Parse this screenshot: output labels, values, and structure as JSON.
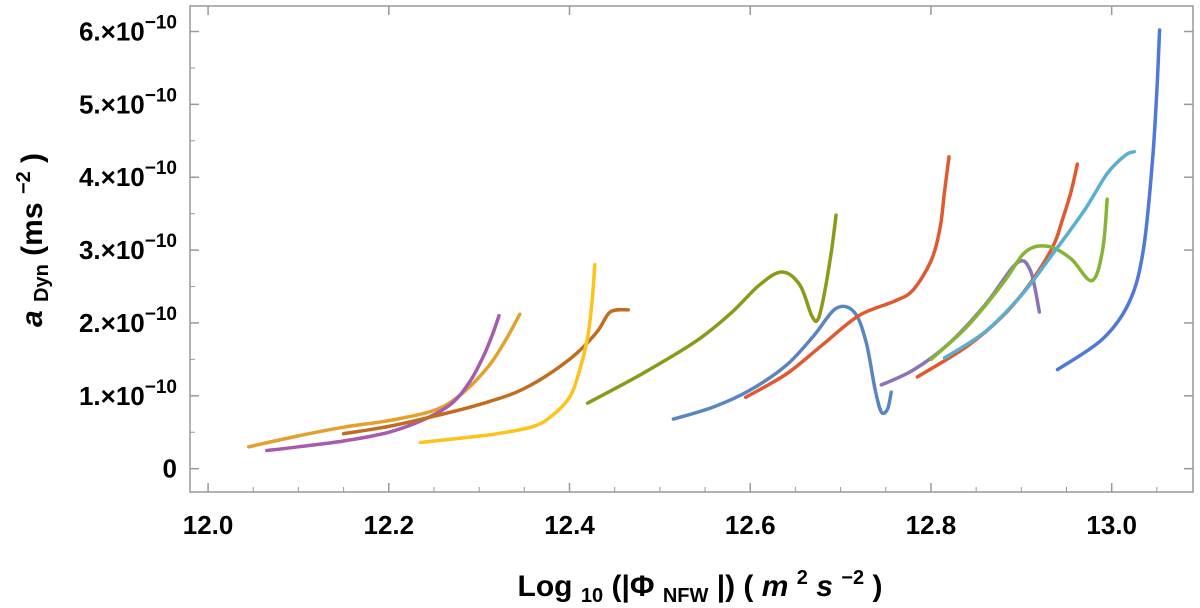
{
  "chart_data": {
    "type": "line",
    "title": "",
    "xlabel": {
      "prefix": "Log",
      "sub": "10",
      "open": "(|Φ",
      "sub2": "NFW",
      "close": "|) (",
      "unit_m": "m",
      "sup_m": "2",
      "unit_s": "s",
      "sup_s": "−2",
      "end": ")"
    },
    "ylabel": {
      "base": "a",
      "sub": "Dyn",
      "open": "(ms",
      "sup": "−2",
      "close": ")"
    },
    "xlim": [
      11.98,
      13.09
    ],
    "ylim": [
      -0.32,
      6.35
    ],
    "y_scale_exponent": -10,
    "x_ticks": [
      12.0,
      12.2,
      12.4,
      12.6,
      12.8,
      13.0
    ],
    "x_tick_labels": [
      "12.0",
      "12.2",
      "12.4",
      "12.6",
      "12.8",
      "13.0"
    ],
    "y_ticks": [
      0,
      1,
      2,
      3,
      4,
      5,
      6
    ],
    "y_tick_labels": [
      {
        "mantissa": "0",
        "exp": ""
      },
      {
        "mantissa": "1.×10",
        "exp": "−10"
      },
      {
        "mantissa": "2.×10",
        "exp": "−10"
      },
      {
        "mantissa": "3.×10",
        "exp": "−10"
      },
      {
        "mantissa": "4.×10",
        "exp": "−10"
      },
      {
        "mantissa": "5.×10",
        "exp": "−10"
      },
      {
        "mantissa": "6.×10",
        "exp": "−10"
      }
    ],
    "grid": false,
    "legend": "none",
    "series": [
      {
        "color": "#E3A02F",
        "points": [
          [
            12.045,
            0.3
          ],
          [
            12.1,
            0.45
          ],
          [
            12.15,
            0.57
          ],
          [
            12.2,
            0.66
          ],
          [
            12.25,
            0.8
          ],
          [
            12.28,
            1.02
          ],
          [
            12.31,
            1.4
          ],
          [
            12.33,
            1.78
          ],
          [
            12.345,
            2.12
          ]
        ]
      },
      {
        "color": "#A65BAE",
        "points": [
          [
            12.065,
            0.25
          ],
          [
            12.1,
            0.3
          ],
          [
            12.15,
            0.38
          ],
          [
            12.2,
            0.5
          ],
          [
            12.24,
            0.68
          ],
          [
            12.27,
            0.9
          ],
          [
            12.29,
            1.2
          ],
          [
            12.305,
            1.55
          ],
          [
            12.315,
            1.85
          ],
          [
            12.322,
            2.1
          ]
        ]
      },
      {
        "color": "#BF6E1F",
        "points": [
          [
            12.15,
            0.48
          ],
          [
            12.2,
            0.58
          ],
          [
            12.25,
            0.72
          ],
          [
            12.3,
            0.88
          ],
          [
            12.35,
            1.1
          ],
          [
            12.4,
            1.5
          ],
          [
            12.43,
            1.87
          ],
          [
            12.445,
            2.15
          ],
          [
            12.465,
            2.18
          ]
        ]
      },
      {
        "color": "#FFC21A",
        "points": [
          [
            12.235,
            0.36
          ],
          [
            12.28,
            0.42
          ],
          [
            12.32,
            0.48
          ],
          [
            12.36,
            0.58
          ],
          [
            12.38,
            0.72
          ],
          [
            12.4,
            0.98
          ],
          [
            12.41,
            1.3
          ],
          [
            12.42,
            1.8
          ],
          [
            12.425,
            2.3
          ],
          [
            12.428,
            2.8
          ]
        ]
      },
      {
        "color": "#8C9A1A",
        "points": [
          [
            12.42,
            0.9
          ],
          [
            12.48,
            1.3
          ],
          [
            12.54,
            1.75
          ],
          [
            12.58,
            2.15
          ],
          [
            12.61,
            2.52
          ],
          [
            12.635,
            2.7
          ],
          [
            12.655,
            2.52
          ],
          [
            12.668,
            2.1
          ],
          [
            12.675,
            2.05
          ],
          [
            12.682,
            2.4
          ],
          [
            12.69,
            3.0
          ],
          [
            12.695,
            3.48
          ]
        ]
      },
      {
        "color": "#5A86C0",
        "points": [
          [
            12.515,
            0.68
          ],
          [
            12.56,
            0.85
          ],
          [
            12.6,
            1.08
          ],
          [
            12.64,
            1.42
          ],
          [
            12.67,
            1.82
          ],
          [
            12.695,
            2.2
          ],
          [
            12.715,
            2.15
          ],
          [
            12.728,
            1.75
          ],
          [
            12.738,
            1.1
          ],
          [
            12.745,
            0.78
          ],
          [
            12.752,
            0.82
          ],
          [
            12.756,
            1.05
          ]
        ]
      },
      {
        "color": "#E0592F",
        "points": [
          [
            12.595,
            0.98
          ],
          [
            12.64,
            1.3
          ],
          [
            12.68,
            1.7
          ],
          [
            12.72,
            2.1
          ],
          [
            12.76,
            2.3
          ],
          [
            12.78,
            2.45
          ],
          [
            12.8,
            2.85
          ],
          [
            12.81,
            3.3
          ],
          [
            12.815,
            3.8
          ],
          [
            12.82,
            4.28
          ]
        ]
      },
      {
        "color": "#8A74B4",
        "points": [
          [
            12.745,
            1.15
          ],
          [
            12.78,
            1.35
          ],
          [
            12.82,
            1.72
          ],
          [
            12.86,
            2.25
          ],
          [
            12.895,
            2.82
          ],
          [
            12.91,
            2.72
          ],
          [
            12.92,
            2.15
          ]
        ]
      },
      {
        "color": "#E0592F",
        "points": [
          [
            12.785,
            1.26
          ],
          [
            12.84,
            1.68
          ],
          [
            12.88,
            2.1
          ],
          [
            12.91,
            2.55
          ],
          [
            12.935,
            3.05
          ],
          [
            12.945,
            3.4
          ],
          [
            12.955,
            3.8
          ],
          [
            12.962,
            4.18
          ]
        ]
      },
      {
        "color": "#86B436",
        "points": [
          [
            12.8,
            1.5
          ],
          [
            12.84,
            1.95
          ],
          [
            12.88,
            2.55
          ],
          [
            12.905,
            2.98
          ],
          [
            12.93,
            3.05
          ],
          [
            12.955,
            2.88
          ],
          [
            12.978,
            2.58
          ],
          [
            12.99,
            3.0
          ],
          [
            12.995,
            3.7
          ]
        ]
      },
      {
        "color": "#5AAECF",
        "points": [
          [
            12.815,
            1.52
          ],
          [
            12.86,
            1.88
          ],
          [
            12.9,
            2.38
          ],
          [
            12.935,
            2.95
          ],
          [
            12.97,
            3.55
          ],
          [
            12.995,
            4.05
          ],
          [
            13.015,
            4.3
          ],
          [
            13.025,
            4.35
          ]
        ]
      },
      {
        "color": "#4F78D8",
        "points": [
          [
            12.94,
            1.36
          ],
          [
            12.99,
            1.78
          ],
          [
            13.02,
            2.3
          ],
          [
            13.035,
            3.0
          ],
          [
            13.045,
            4.2
          ],
          [
            13.05,
            5.2
          ],
          [
            13.053,
            6.02
          ]
        ]
      }
    ]
  }
}
